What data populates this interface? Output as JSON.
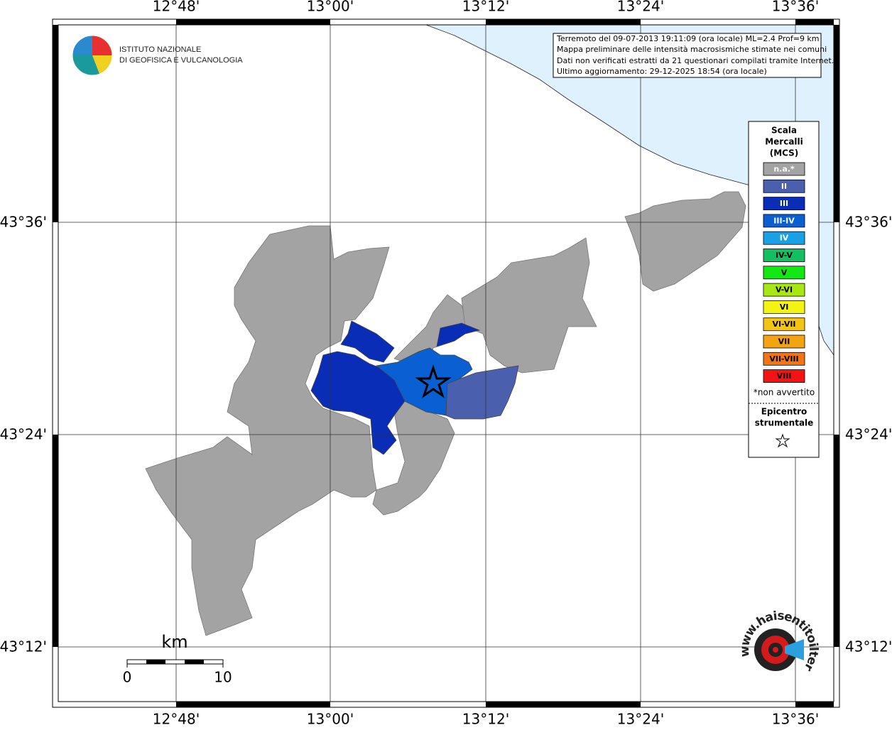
{
  "map": {
    "lon_labels": [
      "12°48'",
      "13°00'",
      "13°12'",
      "13°24'",
      "13°36'"
    ],
    "lat_labels": [
      "43°36'",
      "43°24'",
      "43°12'"
    ],
    "logo": {
      "line1": "ISTITUTO NAZIONALE",
      "line2": "DI GEOFISICA E VULCANOLOGIA"
    },
    "info": [
      "Terremoto del 09-07-2013 19:11:09 (ora locale) ML=2.4 Prof=9 km",
      "Mappa preliminare delle intensità macrosismiche stimate nei comuni",
      "Dati non verificati estratti da 21 questionari compilati tramite Internet.",
      "Ultimo aggiornamento: 29-12-2025 18:54 (ora locale)"
    ],
    "legend": {
      "title": [
        "Scala",
        "Mercalli",
        "(MCS)"
      ],
      "items": [
        {
          "label": "n.a.*",
          "color": "#a3a3a3"
        },
        {
          "label": "II",
          "color": "#4a60ae"
        },
        {
          "label": "III",
          "color": "#0a2db8"
        },
        {
          "label": "III-IV",
          "color": "#0a60d2"
        },
        {
          "label": "IV",
          "color": "#1aa0e6"
        },
        {
          "label": "IV-V",
          "color": "#12c060"
        },
        {
          "label": "V",
          "color": "#12e812"
        },
        {
          "label": "V-VI",
          "color": "#a8e812"
        },
        {
          "label": "VI",
          "color": "#f4f412"
        },
        {
          "label": "VI-VII",
          "color": "#f4c412"
        },
        {
          "label": "VII",
          "color": "#f4a412"
        },
        {
          "label": "VII-VIII",
          "color": "#f47412"
        },
        {
          "label": "VIII",
          "color": "#f41212"
        }
      ],
      "note": "*non avvertito",
      "epicenter": [
        "Epicentro",
        "strumentale"
      ]
    },
    "scale_bar": {
      "unit": "km",
      "labels": [
        "0",
        "10"
      ]
    },
    "site_logo": "www.haisentitoilterremoto.it"
  }
}
